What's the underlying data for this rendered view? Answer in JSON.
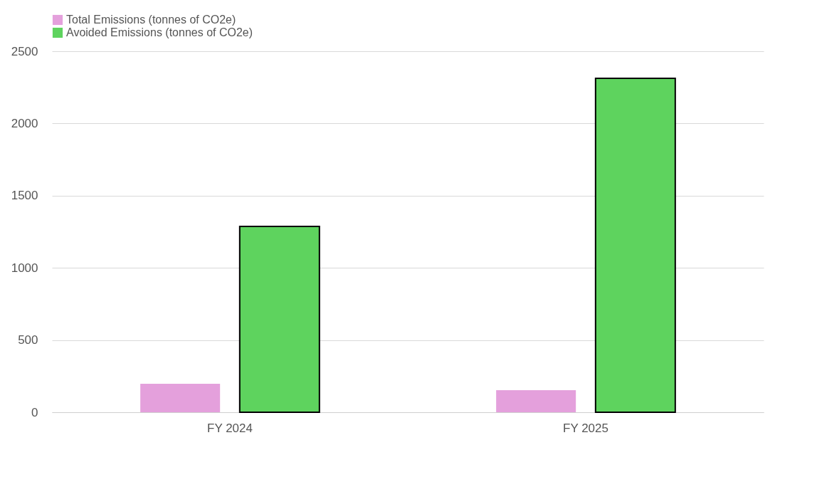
{
  "chart_data": {
    "type": "bar",
    "categories": [
      "FY 2024",
      "FY 2025"
    ],
    "series": [
      {
        "name": "Total Emissions (tonnes of CO2e)",
        "color": "#e4a0dc",
        "values": [
          197,
          153
        ]
      },
      {
        "name": "Avoided Emissions (tonnes of CO2e)",
        "color": "#5ed35e",
        "values": [
          1287,
          2313
        ]
      }
    ],
    "ylim": [
      0,
      2500
    ],
    "yticks": [
      0,
      500,
      1000,
      1500,
      2000,
      2500
    ],
    "grid": "y",
    "legend": "top"
  }
}
